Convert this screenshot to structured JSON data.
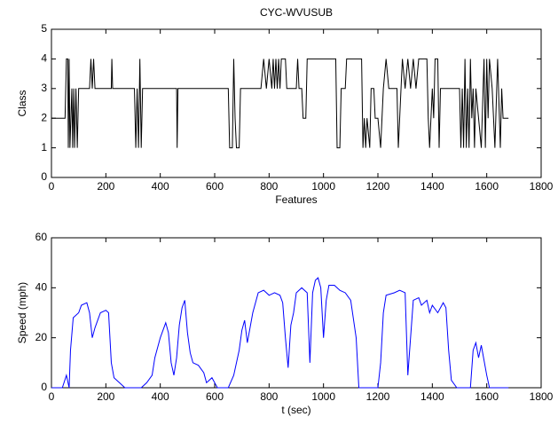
{
  "chart_data": [
    {
      "type": "line",
      "title": "CYC-WVUSUB",
      "xlabel": "Features",
      "ylabel": "Class",
      "color": "#000000",
      "x": [
        0,
        50,
        55,
        60,
        62,
        65,
        68,
        75,
        78,
        82,
        85,
        90,
        95,
        100,
        140,
        145,
        150,
        155,
        160,
        220,
        222,
        225,
        305,
        310,
        315,
        320,
        325,
        330,
        335,
        340,
        460,
        462,
        465,
        650,
        655,
        665,
        670,
        675,
        680,
        690,
        695,
        770,
        780,
        790,
        800,
        810,
        815,
        820,
        825,
        830,
        835,
        840,
        845,
        860,
        865,
        900,
        905,
        910,
        920,
        925,
        935,
        940,
        1045,
        1050,
        1060,
        1065,
        1080,
        1085,
        1140,
        1145,
        1150,
        1155,
        1160,
        1170,
        1175,
        1185,
        1190,
        1200,
        1210,
        1220,
        1230,
        1240,
        1270,
        1275,
        1280,
        1290,
        1300,
        1310,
        1320,
        1330,
        1340,
        1350,
        1380,
        1385,
        1390,
        1400,
        1405,
        1410,
        1420,
        1425,
        1430,
        1500,
        1505,
        1510,
        1515,
        1520,
        1525,
        1530,
        1535,
        1540,
        1545,
        1550,
        1555,
        1560,
        1570,
        1580,
        1590,
        1595,
        1600,
        1605,
        1610,
        1620,
        1630,
        1640,
        1650,
        1655,
        1660,
        1680
      ],
      "values": [
        2,
        2,
        4,
        4,
        1,
        4,
        1,
        3,
        1,
        3,
        1,
        3,
        1,
        3,
        3,
        4,
        3,
        4,
        3,
        3,
        4,
        3,
        3,
        1,
        3,
        1,
        4,
        1,
        3,
        3,
        3,
        1,
        3,
        3,
        1,
        1,
        4,
        2,
        1,
        1,
        3,
        3,
        4,
        3,
        4,
        3,
        4,
        3,
        4,
        3,
        4,
        3,
        4,
        4,
        3,
        3,
        4,
        3,
        3,
        2,
        2,
        4,
        4,
        1,
        1,
        3,
        3,
        4,
        4,
        1,
        2,
        1,
        2,
        1,
        3,
        3,
        2,
        2,
        1,
        3,
        4,
        3,
        3,
        1,
        2,
        4,
        3,
        4,
        3,
        4,
        3,
        4,
        4,
        2,
        1,
        3,
        2,
        4,
        4,
        1,
        3,
        3,
        1,
        3,
        1,
        4,
        1,
        3,
        1,
        4,
        2,
        3,
        1,
        3,
        2,
        1,
        4,
        1,
        4,
        2,
        4,
        3,
        1,
        4,
        1,
        3,
        2,
        2
      ],
      "xlim": [
        0,
        1800
      ],
      "xticks": [
        0,
        200,
        400,
        600,
        800,
        1000,
        1200,
        1400,
        1600,
        1800
      ],
      "ylim": [
        0,
        5
      ],
      "yticks": [
        0,
        1,
        2,
        3,
        4,
        5
      ],
      "grid": false
    },
    {
      "type": "line",
      "xlabel": "t (sec)",
      "ylabel": "Speed (mph)",
      "color": "#0000ff",
      "x": [
        0,
        40,
        55,
        65,
        70,
        80,
        100,
        110,
        130,
        140,
        150,
        160,
        170,
        180,
        200,
        210,
        220,
        230,
        250,
        270,
        330,
        350,
        370,
        380,
        400,
        420,
        430,
        440,
        450,
        460,
        470,
        480,
        490,
        500,
        510,
        520,
        540,
        560,
        570,
        590,
        600,
        610,
        650,
        670,
        690,
        700,
        710,
        720,
        740,
        760,
        780,
        800,
        820,
        840,
        850,
        860,
        870,
        880,
        890,
        900,
        920,
        940,
        950,
        960,
        970,
        980,
        990,
        1000,
        1010,
        1020,
        1040,
        1060,
        1080,
        1100,
        1120,
        1130,
        1200,
        1210,
        1220,
        1230,
        1260,
        1280,
        1300,
        1310,
        1330,
        1350,
        1360,
        1380,
        1390,
        1400,
        1420,
        1440,
        1450,
        1460,
        1470,
        1490,
        1540,
        1550,
        1560,
        1570,
        1580,
        1600,
        1610,
        1680
      ],
      "values": [
        0,
        0,
        5,
        0,
        15,
        28,
        30,
        33,
        34,
        30,
        20,
        24,
        27,
        30,
        31,
        30,
        10,
        4,
        2,
        0,
        0,
        2,
        5,
        12,
        20,
        26,
        22,
        10,
        5,
        12,
        25,
        32,
        35,
        22,
        14,
        10,
        9,
        6,
        2,
        4,
        2,
        0,
        0,
        5,
        15,
        23,
        27,
        18,
        30,
        38,
        39,
        37,
        38,
        37,
        34,
        20,
        8,
        25,
        30,
        38,
        40,
        38,
        10,
        38,
        43,
        44,
        40,
        20,
        35,
        41,
        41,
        39,
        38,
        35,
        20,
        0,
        0,
        10,
        30,
        37,
        38,
        39,
        38,
        5,
        35,
        36,
        33,
        35,
        30,
        33,
        30,
        34,
        32,
        15,
        3,
        0,
        0,
        15,
        18,
        12,
        17,
        5,
        0,
        0
      ],
      "xlim": [
        0,
        1800
      ],
      "xticks": [
        0,
        200,
        400,
        600,
        800,
        1000,
        1200,
        1400,
        1600,
        1800
      ],
      "ylim": [
        0,
        60
      ],
      "yticks": [
        0,
        20,
        40,
        60
      ],
      "grid": false
    }
  ]
}
